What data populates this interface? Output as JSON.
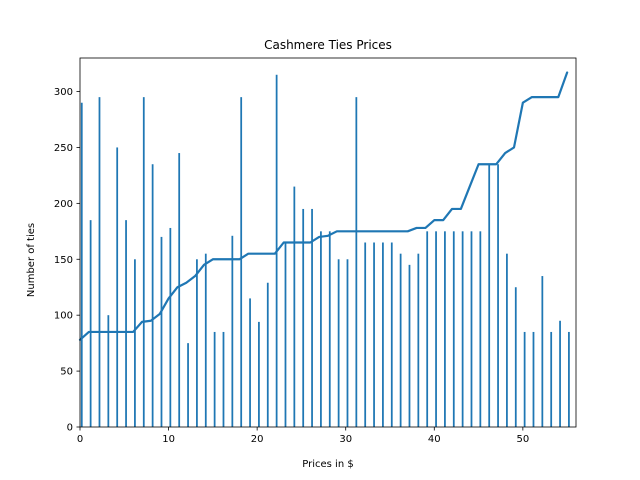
{
  "chart_data": {
    "type": "bar",
    "title": "Cashmere Ties Prices",
    "xlabel": "Prices in $",
    "ylabel": "Number of ties",
    "xlim": [
      0,
      56
    ],
    "ylim": [
      0,
      330
    ],
    "xticks": [
      0,
      10,
      20,
      30,
      40,
      50
    ],
    "yticks": [
      0,
      50,
      100,
      150,
      200,
      250,
      300
    ],
    "grid": false,
    "legend": "none",
    "color": "#1f77b4",
    "series": [
      {
        "type": "bar",
        "x": [
          0.2,
          1.2,
          2.2,
          3.2,
          4.2,
          5.2,
          6.2,
          7.2,
          8.2,
          9.2,
          10.2,
          11.2,
          12.2,
          13.2,
          14.2,
          15.2,
          16.2,
          17.2,
          18.2,
          19.2,
          20.2,
          21.2,
          22.2,
          23.2,
          24.2,
          25.2,
          26.2,
          27.2,
          28.2,
          29.2,
          30.2,
          31.2,
          32.2,
          33.2,
          34.2,
          35.2,
          36.2,
          37.2,
          38.2,
          39.2,
          40.2,
          41.2,
          42.2,
          43.2,
          44.2,
          45.2,
          46.2,
          47.2,
          48.2,
          49.2,
          50.2,
          51.2,
          52.2,
          53.2,
          54.2,
          55.2
        ],
        "values": [
          290,
          185,
          295,
          100,
          250,
          185,
          150,
          295,
          235,
          170,
          178,
          245,
          75,
          150,
          155,
          85,
          85,
          171,
          295,
          115,
          94,
          129,
          315,
          165,
          215,
          195,
          195,
          175,
          175,
          150,
          150,
          295,
          165,
          165,
          165,
          165,
          155,
          145,
          155,
          175,
          175,
          175,
          175,
          175,
          175,
          175,
          235,
          235,
          155,
          125,
          85,
          85,
          135,
          85,
          95,
          85
        ]
      },
      {
        "type": "line",
        "x": [
          0,
          1,
          2,
          3,
          4,
          5,
          6,
          7,
          8,
          9,
          10,
          11,
          12,
          13,
          14,
          15,
          16,
          17,
          18,
          19,
          20,
          21,
          22,
          23,
          24,
          25,
          26,
          27,
          28,
          29,
          30,
          31,
          32,
          33,
          34,
          35,
          36,
          37,
          38,
          39,
          40,
          41,
          42,
          43,
          44,
          45,
          46,
          47,
          48,
          49,
          50,
          51,
          52,
          53,
          54,
          55
        ],
        "values": [
          78,
          85,
          85,
          85,
          85,
          85,
          85,
          94,
          95,
          101,
          115,
          125,
          129,
          135,
          145,
          150,
          150,
          150,
          150,
          155,
          155,
          155,
          155,
          165,
          165,
          165,
          165,
          170,
          171,
          175,
          175,
          175,
          175,
          175,
          175,
          175,
          175,
          175,
          178,
          178,
          185,
          185,
          195,
          195,
          215,
          235,
          235,
          235,
          245,
          250,
          290,
          295,
          295,
          295,
          295,
          317
        ]
      }
    ]
  }
}
